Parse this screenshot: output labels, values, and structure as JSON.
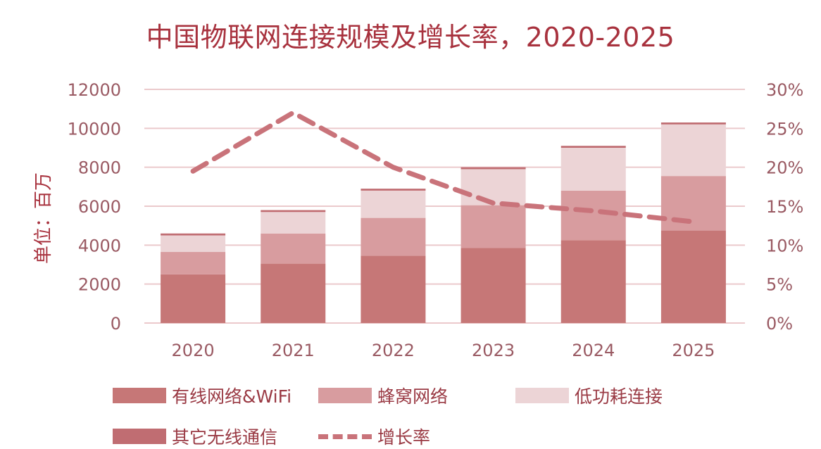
{
  "chart_data": {
    "type": "bar",
    "stacked": true,
    "title": "中国物联网连接规模及增长率，2020-2025",
    "xlabel": "",
    "ylabel": "单位：百万",
    "categories": [
      "2020",
      "2021",
      "2022",
      "2023",
      "2024",
      "2025"
    ],
    "ylim": [
      0,
      12000
    ],
    "yticks": [
      "0",
      "2000",
      "4000",
      "6000",
      "8000",
      "10000",
      "12000"
    ],
    "y2lim": [
      0,
      30
    ],
    "y2ticks": [
      "0%",
      "5%",
      "10%",
      "15%",
      "20%",
      "25%",
      "30%"
    ],
    "grid": true,
    "legend_position": "bottom",
    "series": [
      {
        "name": "有线网络&WiFi",
        "color": "#c67777",
        "values": [
          2500,
          3050,
          3450,
          3850,
          4250,
          4750
        ]
      },
      {
        "name": "蜂窝网络",
        "color": "#d89c9f",
        "values": [
          1150,
          1550,
          1950,
          2200,
          2550,
          2800
        ]
      },
      {
        "name": "低功耗连接",
        "color": "#ecd4d6",
        "values": [
          850,
          1100,
          1400,
          1850,
          2200,
          2650
        ]
      },
      {
        "name": "其它无线通信",
        "color": "#c06d72",
        "values": [
          100,
          100,
          100,
          100,
          100,
          100
        ]
      }
    ],
    "line_series": {
      "name": "增长率",
      "color": "#c9737a",
      "axis": "right",
      "style": "dashed",
      "values": [
        19.5,
        27,
        20,
        15.4,
        14.4,
        13
      ]
    }
  },
  "legend": {
    "wired": "有线网络&WiFi",
    "cellular": "蜂窝网络",
    "lowpower": "低功耗连接",
    "other": "其它无线通信",
    "growth": "增长率"
  }
}
